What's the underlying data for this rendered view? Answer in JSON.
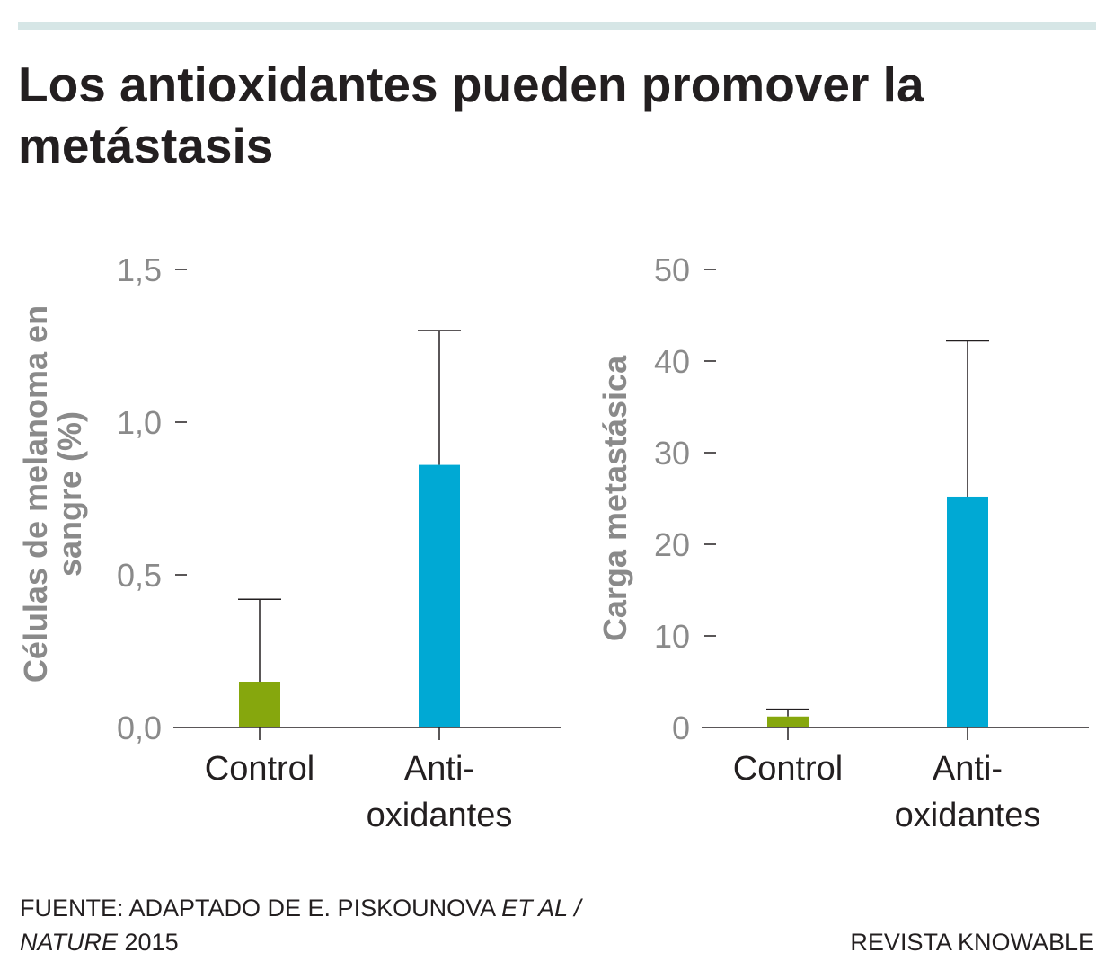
{
  "title_line1": "Los antioxidantes pueden promover la",
  "title_line2": "metástasis",
  "source": {
    "prefix": "FUENTE: ADAPTADO DE E. PISKOUNOVA ",
    "et_al": "ET AL /",
    "journal": "NATURE",
    "year": " 2015"
  },
  "credit": "REVISTA KNOWABLE",
  "colors": {
    "control": "#86a70d",
    "antioxidants": "#00a9d4",
    "axis_text": "#8a8a8a",
    "ink": "#231f20"
  },
  "chart_data": [
    {
      "type": "bar",
      "ylabel_lines": [
        "Células de melanoma en",
        "sangre (%)"
      ],
      "categories": [
        [
          "Control"
        ],
        [
          "Anti-",
          "oxidantes"
        ]
      ],
      "values": [
        0.15,
        0.86
      ],
      "error_upper": [
        0.42,
        1.3
      ],
      "ylim": [
        0,
        1.5
      ],
      "yticks": [
        0,
        0.5,
        1.0,
        1.5
      ],
      "ytick_labels": [
        "0,0",
        "0,5",
        "1,0",
        "1,5"
      ]
    },
    {
      "type": "bar",
      "ylabel_lines": [
        "Carga metastásica"
      ],
      "categories": [
        [
          "Control"
        ],
        [
          "Anti-",
          "oxidantes"
        ]
      ],
      "values": [
        1.2,
        25.2
      ],
      "error_upper": [
        2.0,
        42.2
      ],
      "ylim": [
        0,
        50
      ],
      "yticks": [
        0,
        10,
        20,
        30,
        40,
        50
      ],
      "ytick_labels": [
        "0",
        "10",
        "20",
        "30",
        "40",
        "50"
      ]
    }
  ]
}
